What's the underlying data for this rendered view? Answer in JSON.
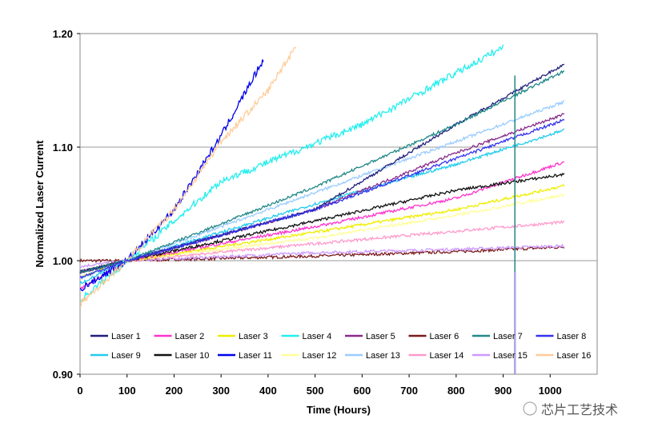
{
  "chart_data": {
    "type": "line",
    "title": "",
    "xlabel": "Time (Hours)",
    "ylabel": "Normalized Laser Current",
    "xlim": [
      0,
      1100
    ],
    "ylim": [
      0.9,
      1.2
    ],
    "xticks": [
      "0",
      "100",
      "200",
      "300",
      "400",
      "500",
      "600",
      "700",
      "800",
      "900",
      "1000"
    ],
    "xtick_values": [
      0,
      100,
      200,
      300,
      400,
      500,
      600,
      700,
      800,
      900,
      1000
    ],
    "yticks": [
      "0.90",
      "1.00",
      "1.10",
      "1.20"
    ],
    "ytick_values": [
      0.9,
      1.0,
      1.1,
      1.2
    ],
    "grid": "horizontal",
    "legend_position": "bottom-inside",
    "series": [
      {
        "name": "Laser 1",
        "color": "#1f1f7a",
        "points": [
          [
            0,
            0.99
          ],
          [
            100,
            1.0
          ],
          [
            500,
            1.045
          ],
          [
            800,
            1.12
          ],
          [
            1030,
            1.173
          ]
        ]
      },
      {
        "name": "Laser 2",
        "color": "#ff33cc",
        "points": [
          [
            0,
            0.975
          ],
          [
            100,
            1.0
          ],
          [
            500,
            1.03
          ],
          [
            800,
            1.055
          ],
          [
            1030,
            1.087
          ]
        ]
      },
      {
        "name": "Laser 3",
        "color": "#eeee00",
        "points": [
          [
            0,
            0.985
          ],
          [
            100,
            1.0
          ],
          [
            500,
            1.025
          ],
          [
            800,
            1.045
          ],
          [
            1030,
            1.066
          ]
        ]
      },
      {
        "name": "Laser 4",
        "color": "#22eeee",
        "points": [
          [
            0,
            0.965
          ],
          [
            100,
            1.0
          ],
          [
            300,
            1.07
          ],
          [
            600,
            1.12
          ],
          [
            900,
            1.188
          ]
        ]
      },
      {
        "name": "Laser 5",
        "color": "#8a2a8a",
        "points": [
          [
            0,
            0.99
          ],
          [
            100,
            1.0
          ],
          [
            500,
            1.045
          ],
          [
            800,
            1.095
          ],
          [
            1030,
            1.129
          ]
        ]
      },
      {
        "name": "Laser 6",
        "color": "#7a1a1a",
        "points": [
          [
            0,
            1.0
          ],
          [
            100,
            1.0
          ],
          [
            500,
            1.004
          ],
          [
            800,
            1.008
          ],
          [
            1030,
            1.012
          ]
        ]
      },
      {
        "name": "Laser 7",
        "color": "#228888",
        "points": [
          [
            0,
            0.99
          ],
          [
            100,
            1.0
          ],
          [
            500,
            1.065
          ],
          [
            800,
            1.12
          ],
          [
            1030,
            1.167
          ]
        ]
      },
      {
        "name": "Laser 8",
        "color": "#3333ee",
        "points": [
          [
            0,
            0.985
          ],
          [
            100,
            1.0
          ],
          [
            500,
            1.045
          ],
          [
            800,
            1.09
          ],
          [
            1030,
            1.124
          ]
        ]
      },
      {
        "name": "Laser 9",
        "color": "#22ccee",
        "points": [
          [
            0,
            0.98
          ],
          [
            100,
            1.0
          ],
          [
            500,
            1.05
          ],
          [
            800,
            1.085
          ],
          [
            1030,
            1.115
          ]
        ]
      },
      {
        "name": "Laser 10",
        "color": "#111111",
        "points": [
          [
            0,
            0.99
          ],
          [
            100,
            1.0
          ],
          [
            500,
            1.035
          ],
          [
            800,
            1.062
          ],
          [
            1030,
            1.076
          ]
        ]
      },
      {
        "name": "Laser 11",
        "color": "#0000ee",
        "points": [
          [
            0,
            0.975
          ],
          [
            100,
            1.0
          ],
          [
            200,
            1.045
          ],
          [
            300,
            1.11
          ],
          [
            390,
            1.177
          ]
        ]
      },
      {
        "name": "Laser 12",
        "color": "#ffff99",
        "points": [
          [
            0,
            0.985
          ],
          [
            100,
            1.0
          ],
          [
            500,
            1.02
          ],
          [
            800,
            1.04
          ],
          [
            1030,
            1.058
          ]
        ]
      },
      {
        "name": "Laser 13",
        "color": "#99ccff",
        "points": [
          [
            0,
            0.985
          ],
          [
            100,
            1.0
          ],
          [
            500,
            1.06
          ],
          [
            800,
            1.105
          ],
          [
            1030,
            1.14
          ]
        ]
      },
      {
        "name": "Laser 14",
        "color": "#ff99cc",
        "points": [
          [
            0,
            0.99
          ],
          [
            100,
            1.0
          ],
          [
            500,
            1.015
          ],
          [
            800,
            1.026
          ],
          [
            1030,
            1.034
          ]
        ]
      },
      {
        "name": "Laser 15",
        "color": "#cc99ff",
        "points": [
          [
            0,
            0.995
          ],
          [
            100,
            1.0
          ],
          [
            500,
            1.007
          ],
          [
            800,
            1.01
          ],
          [
            1030,
            1.013
          ]
        ]
      },
      {
        "name": "Laser 16",
        "color": "#ffcc99",
        "points": [
          [
            0,
            0.962
          ],
          [
            100,
            1.0
          ],
          [
            200,
            1.045
          ],
          [
            300,
            1.105
          ],
          [
            400,
            1.15
          ],
          [
            460,
            1.19
          ]
        ]
      }
    ]
  },
  "watermark": "芯片工艺技术"
}
